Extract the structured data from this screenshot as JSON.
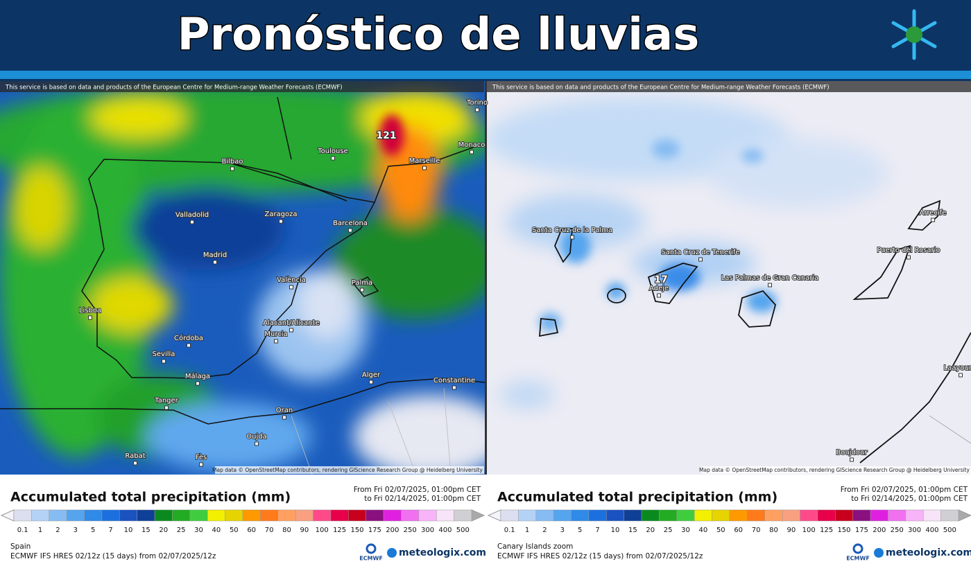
{
  "header": {
    "title": "Pronóstico de lluvias"
  },
  "notice": "This service is based on data and products of the European Centre for Medium-range Weather Forecasts (ECMWF)",
  "attribution": "Map data © OpenStreetMap contributors, rendering GIScience Research Group @ Heidelberg University",
  "legend": {
    "title": "Accumulated total precipitation (mm)",
    "period_from": "From Fri 02/07/2025, 01:00pm CET",
    "period_to": "to Fri 02/14/2025, 01:00pm CET",
    "values": [
      0.1,
      1,
      2,
      3,
      5,
      7,
      10,
      15,
      20,
      25,
      30,
      40,
      50,
      60,
      70,
      80,
      90,
      100,
      125,
      150,
      175,
      200,
      250,
      300,
      400,
      500
    ],
    "colors": [
      "#dcdff0",
      "#b4d2f6",
      "#86bcf2",
      "#55a4ee",
      "#2f8ae8",
      "#1c70de",
      "#1a52c0",
      "#103f98",
      "#0a8a1e",
      "#23ab23",
      "#3fcd3f",
      "#f2f000",
      "#e6d400",
      "#ff9900",
      "#ff7a1a",
      "#ffa060",
      "#f8a080",
      "#ff4a8a",
      "#e8004a",
      "#c8001e",
      "#8a1080",
      "#e020e0",
      "#f070f0",
      "#f8b4f8",
      "#f8e4f8",
      "#d0d0d4"
    ]
  },
  "model": "ECMWF IFS HRES 02/12z (15 days) from 02/07/2025/12z",
  "logos": {
    "ecmwf": "ECMWF",
    "site": "meteologix.com"
  },
  "panels": [
    {
      "region": "Spain",
      "max_label": "121",
      "places": [
        "Toulouse",
        "Bilbao",
        "Marseille",
        "Monaco",
        "Torino",
        "Valladolid",
        "Zaragoza",
        "Barcelona",
        "Madrid",
        "València",
        "Palma",
        "Lisboa",
        "Alacant/Alicante",
        "Murcia",
        "Córdoba",
        "Sevilla",
        "Málaga",
        "Tanger",
        "Alger",
        "Oran",
        "Constantine",
        "Oujda",
        "Rabat",
        "Fès"
      ]
    },
    {
      "region": "Canary Islands zoom",
      "max_label": "17",
      "places": [
        "Santa Cruz de la Palma",
        "Santa Cruz de Tenerife",
        "Adeje",
        "Las Palmas de Gran Canaria",
        "Arrecife",
        "Puerto del Rosario",
        "Laayoune",
        "Boujdour"
      ]
    }
  ]
}
